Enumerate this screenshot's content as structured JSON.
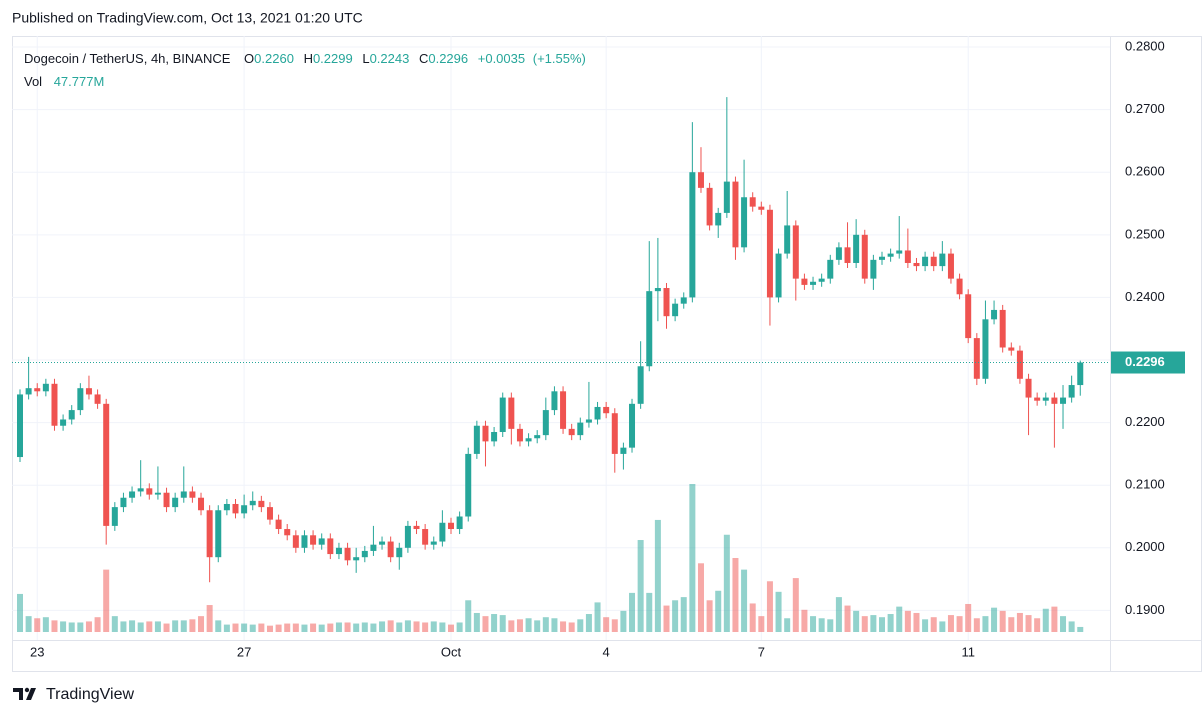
{
  "published": "Published on TradingView.com, Oct 13, 2021 01:20 UTC",
  "brand": "TradingView",
  "chart_data": {
    "type": "candlestick",
    "title": "Dogecoin / TetherUS, 4h, BINANCE",
    "legend": [
      {
        "key": "O",
        "value": 0.226,
        "label": "0.2260"
      },
      {
        "key": "H",
        "value": 0.2299,
        "label": "0.2299"
      },
      {
        "key": "L",
        "value": 0.2243,
        "label": "0.2243"
      },
      {
        "key": "C",
        "value": 0.2296,
        "label": "0.2296"
      }
    ],
    "change": {
      "value": 0.0035,
      "label": "+0.0035"
    },
    "change_pct": {
      "value": 1.55,
      "label": "(+1.55%)"
    },
    "volume_legend": {
      "key": "Vol",
      "value": 47.777,
      "label": "47.777M"
    },
    "last_price": {
      "value": 0.2296,
      "label": "0.2296"
    },
    "up_color": "#26a69a",
    "down_color": "#ef5350",
    "grid": true,
    "categories": [
      null,
      null,
      "23",
      null,
      null,
      null,
      null,
      null,
      null,
      null,
      null,
      null,
      null,
      null,
      null,
      null,
      null,
      null,
      null,
      null,
      null,
      null,
      null,
      null,
      null,
      null,
      "27",
      null,
      null,
      null,
      null,
      null,
      null,
      null,
      null,
      null,
      null,
      null,
      null,
      null,
      null,
      null,
      null,
      null,
      null,
      null,
      null,
      null,
      null,
      null,
      "Oct",
      null,
      null,
      null,
      null,
      null,
      null,
      null,
      null,
      null,
      null,
      null,
      null,
      null,
      null,
      null,
      null,
      null,
      "4",
      null,
      null,
      null,
      null,
      null,
      null,
      null,
      null,
      null,
      null,
      null,
      null,
      null,
      null,
      null,
      null,
      null,
      "7",
      null,
      null,
      null,
      null,
      null,
      null,
      null,
      null,
      null,
      null,
      null,
      null,
      null,
      null,
      null,
      null,
      null,
      null,
      null,
      null,
      null,
      null,
      null,
      "11",
      null,
      null,
      null,
      null,
      null,
      null,
      null,
      null,
      null,
      null,
      null,
      null,
      null
    ],
    "open": [
      0.2145,
      0.2245,
      0.2255,
      0.225,
      0.2262,
      0.2195,
      0.2205,
      0.222,
      0.2255,
      0.2245,
      0.223,
      0.2035,
      0.2065,
      0.208,
      0.209,
      0.2095,
      0.2085,
      0.2088,
      0.2065,
      0.208,
      0.209,
      0.208,
      0.206,
      0.1985,
      0.206,
      0.207,
      0.2055,
      0.2068,
      0.2075,
      0.2065,
      0.2045,
      0.203,
      0.202,
      0.2,
      0.202,
      0.2005,
      0.2015,
      0.199,
      0.2,
      0.198,
      0.1985,
      0.1995,
      0.2005,
      0.201,
      0.1985,
      0.2,
      0.2035,
      0.203,
      0.2005,
      0.201,
      0.204,
      0.203,
      0.205,
      0.215,
      0.2195,
      0.217,
      0.2185,
      0.224,
      0.219,
      0.217,
      0.2175,
      0.218,
      0.222,
      0.225,
      0.219,
      0.218,
      0.22,
      0.2205,
      0.2225,
      0.2215,
      0.215,
      0.216,
      0.223,
      0.229,
      0.241,
      0.2415,
      0.237,
      0.239,
      0.24,
      0.26,
      0.2575,
      0.2515,
      0.2535,
      0.2585,
      0.248,
      0.256,
      0.2545,
      0.254,
      0.24,
      0.247,
      0.2515,
      0.243,
      0.242,
      0.2425,
      0.243,
      0.246,
      0.248,
      0.2455,
      0.25,
      0.243,
      0.246,
      0.2465,
      0.247,
      0.2475,
      0.2455,
      0.245,
      0.2465,
      0.245,
      0.247,
      0.243,
      0.2405,
      0.2335,
      0.227,
      0.2365,
      0.238,
      0.232,
      0.2315,
      0.227,
      0.224,
      0.2235,
      0.224,
      0.223,
      0.224,
      0.226
    ],
    "high": [
      0.2253,
      0.2305,
      0.2263,
      0.227,
      0.227,
      0.2213,
      0.2228,
      0.2263,
      0.2275,
      0.2253,
      0.2238,
      0.2073,
      0.2088,
      0.2098,
      0.214,
      0.2103,
      0.213,
      0.2096,
      0.2088,
      0.213,
      0.2098,
      0.2088,
      0.2068,
      0.2068,
      0.2078,
      0.2078,
      0.2085,
      0.209,
      0.2083,
      0.2073,
      0.2053,
      0.2038,
      0.2028,
      0.2028,
      0.2028,
      0.2023,
      0.2023,
      0.2008,
      0.2008,
      0.2,
      0.2003,
      0.2035,
      0.2018,
      0.2018,
      0.2008,
      0.2043,
      0.2043,
      0.2038,
      0.2018,
      0.206,
      0.2048,
      0.2058,
      0.216,
      0.2203,
      0.2203,
      0.2193,
      0.2248,
      0.2248,
      0.2198,
      0.2183,
      0.2188,
      0.224,
      0.2258,
      0.2258,
      0.2198,
      0.2208,
      0.2265,
      0.2233,
      0.2233,
      0.2223,
      0.2168,
      0.2238,
      0.233,
      0.249,
      0.2495,
      0.2423,
      0.2398,
      0.2408,
      0.268,
      0.264,
      0.2583,
      0.2543,
      0.272,
      0.2593,
      0.262,
      0.2568,
      0.2553,
      0.2548,
      0.2478,
      0.257,
      0.2523,
      0.2438,
      0.2433,
      0.2438,
      0.2468,
      0.2488,
      0.252,
      0.2525,
      0.2508,
      0.2468,
      0.2473,
      0.2478,
      0.253,
      0.251,
      0.2463,
      0.2473,
      0.2473,
      0.249,
      0.2478,
      0.2438,
      0.2413,
      0.2343,
      0.2395,
      0.2395,
      0.2388,
      0.2328,
      0.2323,
      0.2278,
      0.2248,
      0.2248,
      0.2248,
      0.226,
      0.2275,
      0.2299
    ],
    "low": [
      0.2137,
      0.2237,
      0.2242,
      0.2242,
      0.2187,
      0.2187,
      0.2197,
      0.2212,
      0.2237,
      0.2222,
      0.2005,
      0.2027,
      0.2057,
      0.2072,
      0.2082,
      0.2077,
      0.2077,
      0.2057,
      0.2057,
      0.2072,
      0.2072,
      0.2052,
      0.1945,
      0.1977,
      0.2052,
      0.2047,
      0.2047,
      0.206,
      0.2057,
      0.2037,
      0.2022,
      0.2012,
      0.1992,
      0.1992,
      0.1997,
      0.1997,
      0.1982,
      0.1982,
      0.1972,
      0.196,
      0.1977,
      0.1987,
      0.1997,
      0.1977,
      0.1965,
      0.1992,
      0.2022,
      0.1997,
      0.1997,
      0.2002,
      0.2022,
      0.2022,
      0.2042,
      0.2142,
      0.213,
      0.2162,
      0.2177,
      0.2165,
      0.2162,
      0.2162,
      0.2167,
      0.2172,
      0.2212,
      0.2182,
      0.2172,
      0.2172,
      0.2192,
      0.2197,
      0.2207,
      0.212,
      0.2125,
      0.2152,
      0.2222,
      0.2282,
      0.2362,
      0.235,
      0.2362,
      0.2382,
      0.2392,
      0.2567,
      0.2507,
      0.2495,
      0.2527,
      0.246,
      0.2472,
      0.2537,
      0.2532,
      0.2355,
      0.2392,
      0.2462,
      0.2395,
      0.2412,
      0.2412,
      0.2417,
      0.2422,
      0.2452,
      0.2447,
      0.2447,
      0.2422,
      0.2412,
      0.2452,
      0.2457,
      0.2462,
      0.2447,
      0.2442,
      0.2442,
      0.2442,
      0.2442,
      0.2422,
      0.2397,
      0.2327,
      0.226,
      0.2262,
      0.2357,
      0.2312,
      0.2307,
      0.2262,
      0.218,
      0.2227,
      0.2227,
      0.216,
      0.219,
      0.2232,
      0.2243
    ],
    "close": [
      0.2245,
      0.2255,
      0.225,
      0.2262,
      0.2195,
      0.2205,
      0.222,
      0.2255,
      0.2245,
      0.223,
      0.2035,
      0.2065,
      0.208,
      0.209,
      0.2095,
      0.2085,
      0.2088,
      0.2065,
      0.208,
      0.209,
      0.208,
      0.206,
      0.1985,
      0.206,
      0.207,
      0.2055,
      0.2068,
      0.2075,
      0.2065,
      0.2045,
      0.203,
      0.202,
      0.2,
      0.202,
      0.2005,
      0.2015,
      0.199,
      0.2,
      0.198,
      0.1985,
      0.1995,
      0.2005,
      0.201,
      0.1985,
      0.2,
      0.2035,
      0.203,
      0.2005,
      0.201,
      0.204,
      0.203,
      0.205,
      0.215,
      0.2195,
      0.217,
      0.2185,
      0.224,
      0.219,
      0.217,
      0.2175,
      0.218,
      0.222,
      0.225,
      0.219,
      0.218,
      0.22,
      0.2205,
      0.2225,
      0.2215,
      0.215,
      0.216,
      0.223,
      0.229,
      0.241,
      0.2415,
      0.237,
      0.239,
      0.24,
      0.26,
      0.2575,
      0.2515,
      0.2535,
      0.2585,
      0.248,
      0.256,
      0.2545,
      0.254,
      0.24,
      0.247,
      0.2515,
      0.243,
      0.242,
      0.2425,
      0.243,
      0.246,
      0.248,
      0.2455,
      0.25,
      0.243,
      0.246,
      0.2465,
      0.247,
      0.2475,
      0.2455,
      0.245,
      0.2465,
      0.245,
      0.247,
      0.243,
      0.2405,
      0.2335,
      0.227,
      0.2365,
      0.238,
      0.232,
      0.2315,
      0.227,
      0.224,
      0.2235,
      0.224,
      0.223,
      0.224,
      0.226,
      0.2296
    ],
    "volume": [
      360,
      150,
      130,
      140,
      110,
      100,
      90,
      90,
      100,
      140,
      590,
      150,
      100,
      110,
      90,
      100,
      100,
      80,
      110,
      110,
      120,
      150,
      255,
      110,
      70,
      80,
      80,
      70,
      80,
      60,
      70,
      80,
      80,
      70,
      80,
      70,
      80,
      90,
      90,
      80,
      90,
      80,
      100,
      110,
      90,
      110,
      100,
      90,
      100,
      90,
      70,
      90,
      300,
      180,
      150,
      170,
      160,
      110,
      120,
      130,
      110,
      140,
      130,
      100,
      90,
      120,
      170,
      280,
      140,
      120,
      200,
      370,
      870,
      370,
      1060,
      250,
      300,
      330,
      1400,
      650,
      300,
      390,
      920,
      700,
      590,
      270,
      150,
      480,
      380,
      130,
      510,
      210,
      150,
      130,
      120,
      330,
      250,
      200,
      150,
      160,
      140,
      170,
      240,
      200,
      180,
      120,
      140,
      100,
      160,
      150,
      265,
      130,
      150,
      230,
      200,
      140,
      180,
      160,
      130,
      220,
      240,
      150,
      100,
      47.777
    ],
    "ylim": [
      0.18655,
      0.28176
    ],
    "yticks": [
      {
        "value": 0.19,
        "label": "0.1900"
      },
      {
        "value": 0.2,
        "label": "0.2000"
      },
      {
        "value": 0.21,
        "label": "0.2100"
      },
      {
        "value": 0.22,
        "label": "0.2200"
      },
      {
        "value": 0.23,
        "label": "0.2300"
      },
      {
        "value": 0.24,
        "label": "0.2400"
      },
      {
        "value": 0.25,
        "label": "0.2500"
      },
      {
        "value": 0.26,
        "label": "0.2600"
      },
      {
        "value": 0.27,
        "label": "0.2700"
      },
      {
        "value": 0.28,
        "label": "0.2800"
      }
    ]
  }
}
